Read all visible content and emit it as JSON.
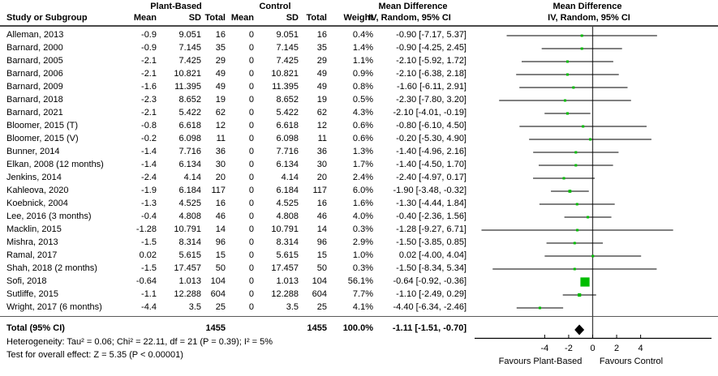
{
  "header": {
    "group_treatment": "Plant-Based",
    "group_control": "Control",
    "md_left": "Mean Difference",
    "md_right": "Mean Difference",
    "col_study": "Study or Subgroup",
    "col_mean": "Mean",
    "col_sd": "SD",
    "col_total": "Total",
    "col_weight": "Weight",
    "col_ci_left": "IV, Random, 95% CI",
    "col_ci_right": "IV, Random, 95% CI"
  },
  "footer": {
    "total_label": "Total (95% CI)",
    "total_n_treatment": "1455",
    "total_n_control": "1455",
    "total_weight": "100.0%",
    "total_md_text": "-1.11 [-1.51, -0.70]",
    "heterogeneity": "Heterogeneity: Tau² = 0.06; Chi² = 22.11, df = 21 (P = 0.39); I² = 5%",
    "overall_effect": "Test for overall effect: Z = 5.35 (P < 0.00001)",
    "favours_left": "Favours Plant-Based",
    "favours_right": "Favours Control"
  },
  "colors": {
    "square": "#00bd00",
    "diamond": "#000000",
    "ci_line": "#000000",
    "zero_line": "#3f3f3f",
    "axis": "#000000"
  },
  "chart_data": {
    "type": "forest",
    "effect_label": "Mean Difference",
    "method_label": "IV, Random, 95% CI",
    "x_ticks": [
      -4,
      -2,
      0,
      2,
      4
    ],
    "x_range": [
      -9.8,
      9.9
    ],
    "studies": [
      {
        "name": "Alleman, 2013",
        "mean": "-0.9",
        "sd": "9.051",
        "total": "16",
        "c_mean": "0",
        "c_sd": "9.051",
        "c_total": "16",
        "weight": "0.4%",
        "weight_pct": 0.4,
        "md": -0.9,
        "ci_low": -7.17,
        "ci_high": 5.37,
        "md_text": "-0.90 [-7.17, 5.37]"
      },
      {
        "name": "Barnard, 2000",
        "mean": "-0.9",
        "sd": "7.145",
        "total": "35",
        "c_mean": "0",
        "c_sd": "7.145",
        "c_total": "35",
        "weight": "1.4%",
        "weight_pct": 1.4,
        "md": -0.9,
        "ci_low": -4.25,
        "ci_high": 2.45,
        "md_text": "-0.90 [-4.25, 2.45]"
      },
      {
        "name": "Barnard, 2005",
        "mean": "-2.1",
        "sd": "7.425",
        "total": "29",
        "c_mean": "0",
        "c_sd": "7.425",
        "c_total": "29",
        "weight": "1.1%",
        "weight_pct": 1.1,
        "md": -2.1,
        "ci_low": -5.92,
        "ci_high": 1.72,
        "md_text": "-2.10 [-5.92, 1.72]"
      },
      {
        "name": "Barnard, 2006",
        "mean": "-2.1",
        "sd": "10.821",
        "total": "49",
        "c_mean": "0",
        "c_sd": "10.821",
        "c_total": "49",
        "weight": "0.9%",
        "weight_pct": 0.9,
        "md": -2.1,
        "ci_low": -6.38,
        "ci_high": 2.18,
        "md_text": "-2.10 [-6.38, 2.18]"
      },
      {
        "name": "Barnard, 2009",
        "mean": "-1.6",
        "sd": "11.395",
        "total": "49",
        "c_mean": "0",
        "c_sd": "11.395",
        "c_total": "49",
        "weight": "0.8%",
        "weight_pct": 0.8,
        "md": -1.6,
        "ci_low": -6.11,
        "ci_high": 2.91,
        "md_text": "-1.60 [-6.11, 2.91]"
      },
      {
        "name": "Barnard, 2018",
        "mean": "-2.3",
        "sd": "8.652",
        "total": "19",
        "c_mean": "0",
        "c_sd": "8.652",
        "c_total": "19",
        "weight": "0.5%",
        "weight_pct": 0.5,
        "md": -2.3,
        "ci_low": -7.8,
        "ci_high": 3.2,
        "md_text": "-2.30 [-7.80, 3.20]"
      },
      {
        "name": "Barnard, 2021",
        "mean": "-2.1",
        "sd": "5.422",
        "total": "62",
        "c_mean": "0",
        "c_sd": "5.422",
        "c_total": "62",
        "weight": "4.3%",
        "weight_pct": 4.3,
        "md": -2.1,
        "ci_low": -4.01,
        "ci_high": -0.19,
        "md_text": "-2.10 [-4.01, -0.19]"
      },
      {
        "name": "Bloomer, 2015 (T)",
        "mean": "-0.8",
        "sd": "6.618",
        "total": "12",
        "c_mean": "0",
        "c_sd": "6.618",
        "c_total": "12",
        "weight": "0.6%",
        "weight_pct": 0.6,
        "md": -0.8,
        "ci_low": -6.1,
        "ci_high": 4.5,
        "md_text": "-0.80 [-6.10, 4.50]"
      },
      {
        "name": "Bloomer, 2015 (V)",
        "mean": "-0.2",
        "sd": "6.098",
        "total": "11",
        "c_mean": "0",
        "c_sd": "6.098",
        "c_total": "11",
        "weight": "0.6%",
        "weight_pct": 0.6,
        "md": -0.2,
        "ci_low": -5.3,
        "ci_high": 4.9,
        "md_text": "-0.20 [-5.30, 4.90]"
      },
      {
        "name": "Bunner, 2014",
        "mean": "-1.4",
        "sd": "7.716",
        "total": "36",
        "c_mean": "0",
        "c_sd": "7.716",
        "c_total": "36",
        "weight": "1.3%",
        "weight_pct": 1.3,
        "md": -1.4,
        "ci_low": -4.96,
        "ci_high": 2.16,
        "md_text": "-1.40 [-4.96, 2.16]"
      },
      {
        "name": "Elkan, 2008 (12 months)",
        "mean": "-1.4",
        "sd": "6.134",
        "total": "30",
        "c_mean": "0",
        "c_sd": "6.134",
        "c_total": "30",
        "weight": "1.7%",
        "weight_pct": 1.7,
        "md": -1.4,
        "ci_low": -4.5,
        "ci_high": 1.7,
        "md_text": "-1.40 [-4.50, 1.70]"
      },
      {
        "name": "Jenkins, 2014",
        "mean": "-2.4",
        "sd": "4.14",
        "total": "20",
        "c_mean": "0",
        "c_sd": "4.14",
        "c_total": "20",
        "weight": "2.4%",
        "weight_pct": 2.4,
        "md": -2.4,
        "ci_low": -4.97,
        "ci_high": 0.17,
        "md_text": "-2.40 [-4.97, 0.17]"
      },
      {
        "name": "Kahleova, 2020",
        "mean": "-1.9",
        "sd": "6.184",
        "total": "117",
        "c_mean": "0",
        "c_sd": "6.184",
        "c_total": "117",
        "weight": "6.0%",
        "weight_pct": 6.0,
        "md": -1.9,
        "ci_low": -3.48,
        "ci_high": -0.32,
        "md_text": "-1.90 [-3.48, -0.32]"
      },
      {
        "name": "Koebnick, 2004",
        "mean": "-1.3",
        "sd": "4.525",
        "total": "16",
        "c_mean": "0",
        "c_sd": "4.525",
        "c_total": "16",
        "weight": "1.6%",
        "weight_pct": 1.6,
        "md": -1.3,
        "ci_low": -4.44,
        "ci_high": 1.84,
        "md_text": "-1.30 [-4.44, 1.84]"
      },
      {
        "name": "Lee, 2016 (3 months)",
        "mean": "-0.4",
        "sd": "4.808",
        "total": "46",
        "c_mean": "0",
        "c_sd": "4.808",
        "c_total": "46",
        "weight": "4.0%",
        "weight_pct": 4.0,
        "md": -0.4,
        "ci_low": -2.36,
        "ci_high": 1.56,
        "md_text": "-0.40 [-2.36, 1.56]"
      },
      {
        "name": "Macklin, 2015",
        "mean": "-1.28",
        "sd": "10.791",
        "total": "14",
        "c_mean": "0",
        "c_sd": "10.791",
        "c_total": "14",
        "weight": "0.3%",
        "weight_pct": 0.3,
        "md": -1.28,
        "ci_low": -9.27,
        "ci_high": 6.71,
        "md_text": "-1.28 [-9.27, 6.71]"
      },
      {
        "name": "Mishra, 2013",
        "mean": "-1.5",
        "sd": "8.314",
        "total": "96",
        "c_mean": "0",
        "c_sd": "8.314",
        "c_total": "96",
        "weight": "2.9%",
        "weight_pct": 2.9,
        "md": -1.5,
        "ci_low": -3.85,
        "ci_high": 0.85,
        "md_text": "-1.50 [-3.85, 0.85]"
      },
      {
        "name": "Ramal, 2017",
        "mean": "0.02",
        "sd": "5.615",
        "total": "15",
        "c_mean": "0",
        "c_sd": "5.615",
        "c_total": "15",
        "weight": "1.0%",
        "weight_pct": 1.0,
        "md": 0.02,
        "ci_low": -4.0,
        "ci_high": 4.04,
        "md_text": "0.02 [-4.00, 4.04]"
      },
      {
        "name": "Shah, 2018 (2 months)",
        "mean": "-1.5",
        "sd": "17.457",
        "total": "50",
        "c_mean": "0",
        "c_sd": "17.457",
        "c_total": "50",
        "weight": "0.3%",
        "weight_pct": 0.3,
        "md": -1.5,
        "ci_low": -8.34,
        "ci_high": 5.34,
        "md_text": "-1.50 [-8.34, 5.34]"
      },
      {
        "name": "Sofi, 2018",
        "mean": "-0.64",
        "sd": "1.013",
        "total": "104",
        "c_mean": "0",
        "c_sd": "1.013",
        "c_total": "104",
        "weight": "56.1%",
        "weight_pct": 56.1,
        "md": -0.64,
        "ci_low": -0.92,
        "ci_high": -0.36,
        "md_text": "-0.64 [-0.92, -0.36]"
      },
      {
        "name": "Sutliffe, 2015",
        "mean": "-1.1",
        "sd": "12.288",
        "total": "604",
        "c_mean": "0",
        "c_sd": "12.288",
        "c_total": "604",
        "weight": "7.7%",
        "weight_pct": 7.7,
        "md": -1.1,
        "ci_low": -2.49,
        "ci_high": 0.29,
        "md_text": "-1.10 [-2.49, 0.29]"
      },
      {
        "name": "Wright, 2017 (6 months)",
        "mean": "-4.4",
        "sd": "3.5",
        "total": "25",
        "c_mean": "0",
        "c_sd": "3.5",
        "c_total": "25",
        "weight": "4.1%",
        "weight_pct": 4.1,
        "md": -4.4,
        "ci_low": -6.34,
        "ci_high": -2.46,
        "md_text": "-4.40 [-6.34, -2.46]"
      }
    ],
    "total": {
      "n_treatment": 1455,
      "n_control": 1455,
      "weight_pct": 100.0,
      "md": -1.11,
      "ci_low": -1.51,
      "ci_high": -0.7
    }
  }
}
